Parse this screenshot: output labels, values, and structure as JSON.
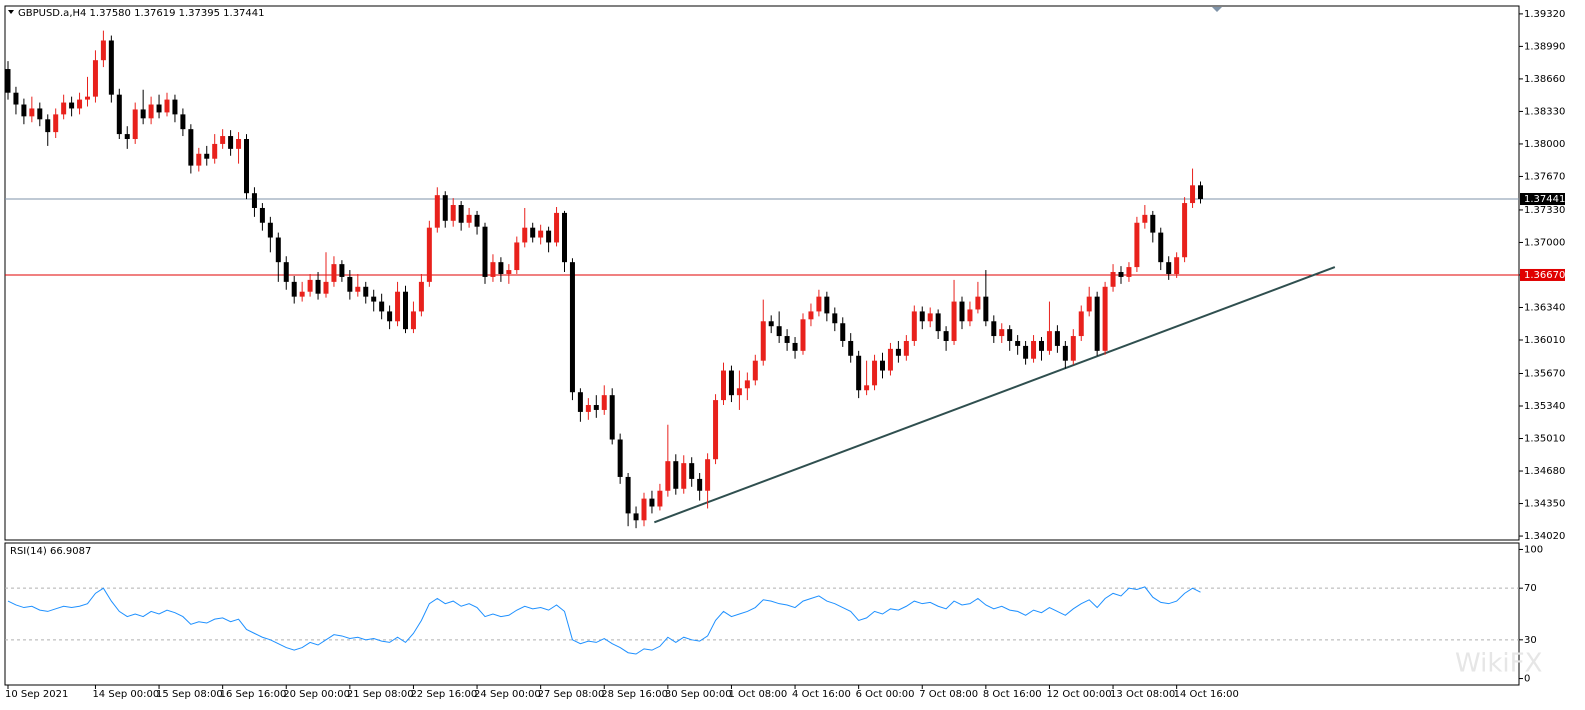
{
  "chart_data": {
    "type": "candlestick",
    "header": "GBPUSD.a,H4  1.37580 1.37619 1.37395 1.37441",
    "watermark": "WikiFX",
    "up_color": "#e8211c",
    "down_color": "#000000",
    "categories": [
      "10 Sep 2021",
      null,
      null,
      null,
      null,
      null,
      null,
      null,
      null,
      null,
      null,
      "14 Sep 00:00",
      null,
      null,
      null,
      null,
      null,
      null,
      null,
      "15 Sep 08:00",
      null,
      null,
      null,
      null,
      null,
      null,
      null,
      "16 Sep 16:00",
      null,
      null,
      null,
      null,
      null,
      null,
      null,
      "20 Sep 00:00",
      null,
      null,
      null,
      null,
      null,
      null,
      null,
      "21 Sep 08:00",
      null,
      null,
      null,
      null,
      null,
      null,
      null,
      "22 Sep 16:00",
      null,
      null,
      null,
      null,
      null,
      null,
      null,
      "24 Sep 00:00",
      null,
      null,
      null,
      null,
      null,
      null,
      null,
      "27 Sep 08:00",
      null,
      null,
      null,
      null,
      null,
      null,
      null,
      "28 Sep 16:00",
      null,
      null,
      null,
      null,
      null,
      null,
      null,
      "30 Sep 00:00",
      null,
      null,
      null,
      null,
      null,
      null,
      null,
      "1 Oct 08:00",
      null,
      null,
      null,
      null,
      null,
      null,
      null,
      "4 Oct 16:00",
      null,
      null,
      null,
      null,
      null,
      null,
      null,
      "6 Oct 00:00",
      null,
      null,
      null,
      null,
      null,
      null,
      null,
      "7 Oct 08:00",
      null,
      null,
      null,
      null,
      null,
      null,
      null,
      "8 Oct 16:00",
      null,
      null,
      null,
      null,
      null,
      null,
      null,
      "12 Oct 00:00",
      null,
      null,
      null,
      null,
      null,
      null,
      null,
      "13 Oct 08:00",
      null,
      null,
      null,
      null,
      null,
      null,
      null,
      "14 Oct 16:00",
      null,
      null,
      null
    ],
    "open": [
      1.3876,
      1.3852,
      1.384,
      1.3828,
      1.3836,
      1.3825,
      1.3812,
      1.383,
      1.3842,
      1.3836,
      1.3845,
      1.3848,
      1.3885,
      1.3905,
      1.385,
      1.381,
      1.3805,
      1.3835,
      1.3826,
      1.384,
      1.3832,
      1.3845,
      1.383,
      1.3815,
      1.3778,
      1.379,
      1.3785,
      1.38,
      1.3808,
      1.3795,
      1.3805,
      1.375,
      1.3735,
      1.372,
      1.3705,
      1.368,
      1.366,
      1.3645,
      1.365,
      1.3662,
      1.3648,
      1.366,
      1.3678,
      1.3665,
      1.365,
      1.3655,
      1.3645,
      1.364,
      1.363,
      1.362,
      1.365,
      1.3612,
      1.363,
      1.366,
      1.3715,
      1.3748,
      1.3722,
      1.3738,
      1.372,
      1.3728,
      1.3716,
      1.3665,
      1.368,
      1.3668,
      1.3672,
      1.37,
      1.3715,
      1.3705,
      1.3712,
      1.37,
      1.373,
      1.368,
      1.3548,
      1.3528,
      1.3535,
      1.353,
      1.3545,
      1.35,
      1.3462,
      1.3425,
      1.3418,
      1.344,
      1.3432,
      1.3448,
      1.3478,
      1.345,
      1.3476,
      1.346,
      1.3448,
      1.348,
      1.354,
      1.357,
      1.3545,
      1.3552,
      1.356,
      1.358,
      1.362,
      1.3615,
      1.3605,
      1.3598,
      1.359,
      1.3622,
      1.363,
      1.3645,
      1.3628,
      1.3618,
      1.36,
      1.3585,
      1.355,
      1.3555,
      1.358,
      1.357,
      1.3592,
      1.3585,
      1.36,
      1.363,
      1.362,
      1.3628,
      1.361,
      1.36,
      1.364,
      1.362,
      1.3632,
      1.3645,
      1.362,
      1.3605,
      1.3612,
      1.36,
      1.3595,
      1.3582,
      1.36,
      1.359,
      1.361,
      1.3595,
      1.358,
      1.3605,
      1.363,
      1.3645,
      1.359,
      1.3655,
      1.367,
      1.3665,
      1.3675,
      1.372,
      1.3728,
      1.371,
      1.368,
      1.3668,
      1.3685,
      1.374,
      1.3758
    ],
    "high": [
      1.3884,
      1.3858,
      1.3846,
      1.3848,
      1.3842,
      1.383,
      1.3836,
      1.385,
      1.3848,
      1.3852,
      1.3868,
      1.3895,
      1.3915,
      1.391,
      1.3856,
      1.3818,
      1.3842,
      1.3855,
      1.3848,
      1.385,
      1.3852,
      1.385,
      1.3836,
      1.382,
      1.3796,
      1.3798,
      1.381,
      1.3815,
      1.3814,
      1.3812,
      1.381,
      1.3756,
      1.374,
      1.3726,
      1.371,
      1.3686,
      1.3666,
      1.366,
      1.3668,
      1.367,
      1.369,
      1.3686,
      1.3682,
      1.3672,
      1.3668,
      1.366,
      1.3652,
      1.3648,
      1.3636,
      1.366,
      1.3656,
      1.364,
      1.3668,
      1.3722,
      1.3756,
      1.3752,
      1.3745,
      1.3742,
      1.3735,
      1.3732,
      1.372,
      1.3688,
      1.3685,
      1.3678,
      1.3706,
      1.3735,
      1.372,
      1.3718,
      1.3716,
      1.3736,
      1.3732,
      1.3684,
      1.3552,
      1.3542,
      1.3545,
      1.3555,
      1.3552,
      1.3506,
      1.3466,
      1.3432,
      1.3446,
      1.3448,
      1.3455,
      1.3515,
      1.3485,
      1.3484,
      1.3482,
      1.3466,
      1.3486,
      1.3546,
      1.3578,
      1.3575,
      1.357,
      1.3568,
      1.3586,
      1.3642,
      1.3626,
      1.363,
      1.3612,
      1.3604,
      1.3628,
      1.3638,
      1.3652,
      1.365,
      1.3634,
      1.3624,
      1.3608,
      1.359,
      1.358,
      1.3586,
      1.3588,
      1.3598,
      1.36,
      1.3606,
      1.3636,
      1.3635,
      1.3634,
      1.3632,
      1.3615,
      1.3662,
      1.3645,
      1.364,
      1.366,
      1.3672,
      1.3626,
      1.3618,
      1.3616,
      1.3606,
      1.36,
      1.3606,
      1.3604,
      1.364,
      1.3616,
      1.36,
      1.3612,
      1.3636,
      1.3655,
      1.365,
      1.366,
      1.3678,
      1.3676,
      1.368,
      1.3726,
      1.3738,
      1.3732,
      1.3715,
      1.3686,
      1.369,
      1.3746,
      1.3775,
      1.37619
    ],
    "low": [
      1.3845,
      1.383,
      1.382,
      1.3822,
      1.3818,
      1.3798,
      1.3806,
      1.3825,
      1.3828,
      1.383,
      1.3838,
      1.3842,
      1.3878,
      1.3842,
      1.3805,
      1.3795,
      1.38,
      1.382,
      1.382,
      1.3826,
      1.3828,
      1.3822,
      1.3808,
      1.377,
      1.3772,
      1.3778,
      1.378,
      1.3795,
      1.3788,
      1.378,
      1.3744,
      1.3726,
      1.3712,
      1.369,
      1.366,
      1.3652,
      1.3638,
      1.364,
      1.3645,
      1.3642,
      1.3644,
      1.3655,
      1.366,
      1.3642,
      1.3645,
      1.3638,
      1.363,
      1.3622,
      1.3612,
      1.3615,
      1.3608,
      1.3608,
      1.3625,
      1.3655,
      1.371,
      1.3715,
      1.3716,
      1.3712,
      1.3715,
      1.3708,
      1.3658,
      1.366,
      1.366,
      1.3658,
      1.3668,
      1.3695,
      1.37,
      1.3698,
      1.369,
      1.3696,
      1.367,
      1.354,
      1.3518,
      1.352,
      1.3522,
      1.3525,
      1.3495,
      1.3455,
      1.3412,
      1.341,
      1.3412,
      1.3425,
      1.3428,
      1.3442,
      1.3444,
      1.3445,
      1.3452,
      1.3438,
      1.343,
      1.3475,
      1.3535,
      1.3538,
      1.353,
      1.354,
      1.3555,
      1.3575,
      1.3608,
      1.3598,
      1.359,
      1.3582,
      1.3586,
      1.3615,
      1.3625,
      1.362,
      1.361,
      1.3594,
      1.3578,
      1.3542,
      1.3545,
      1.355,
      1.3562,
      1.3565,
      1.3578,
      1.358,
      1.3595,
      1.3612,
      1.3614,
      1.3602,
      1.359,
      1.3596,
      1.3612,
      1.3615,
      1.3628,
      1.3615,
      1.3598,
      1.3598,
      1.359,
      1.3586,
      1.3576,
      1.3578,
      1.358,
      1.3586,
      1.3588,
      1.3572,
      1.3576,
      1.36,
      1.3625,
      1.3585,
      1.3586,
      1.365,
      1.3658,
      1.366,
      1.367,
      1.3714,
      1.37,
      1.3672,
      1.3662,
      1.3664,
      1.368,
      1.3735,
      1.37395
    ],
    "close": [
      1.3852,
      1.384,
      1.3828,
      1.3836,
      1.3825,
      1.3812,
      1.383,
      1.3842,
      1.3836,
      1.3845,
      1.3848,
      1.3885,
      1.3905,
      1.385,
      1.381,
      1.3805,
      1.3835,
      1.3826,
      1.384,
      1.3832,
      1.3845,
      1.383,
      1.3815,
      1.3778,
      1.379,
      1.3785,
      1.38,
      1.3808,
      1.3795,
      1.3805,
      1.375,
      1.3735,
      1.372,
      1.3705,
      1.368,
      1.366,
      1.3645,
      1.365,
      1.3662,
      1.3648,
      1.366,
      1.3678,
      1.3665,
      1.365,
      1.3655,
      1.3645,
      1.364,
      1.363,
      1.362,
      1.365,
      1.3612,
      1.363,
      1.366,
      1.3715,
      1.3748,
      1.3722,
      1.3738,
      1.372,
      1.3728,
      1.3716,
      1.3665,
      1.368,
      1.3668,
      1.3672,
      1.37,
      1.3715,
      1.3705,
      1.3712,
      1.37,
      1.373,
      1.368,
      1.3548,
      1.3528,
      1.3535,
      1.353,
      1.3545,
      1.35,
      1.3462,
      1.3425,
      1.3418,
      1.344,
      1.3432,
      1.3448,
      1.3478,
      1.345,
      1.3476,
      1.346,
      1.3448,
      1.348,
      1.354,
      1.357,
      1.3545,
      1.3552,
      1.356,
      1.358,
      1.362,
      1.3615,
      1.3605,
      1.3598,
      1.359,
      1.3622,
      1.363,
      1.3645,
      1.3628,
      1.3618,
      1.36,
      1.3585,
      1.355,
      1.3555,
      1.358,
      1.357,
      1.3592,
      1.3585,
      1.36,
      1.363,
      1.362,
      1.3628,
      1.361,
      1.36,
      1.364,
      1.362,
      1.3632,
      1.3645,
      1.362,
      1.3605,
      1.3612,
      1.36,
      1.3595,
      1.3582,
      1.36,
      1.359,
      1.361,
      1.3595,
      1.358,
      1.3605,
      1.363,
      1.3645,
      1.359,
      1.3655,
      1.367,
      1.3665,
      1.3675,
      1.372,
      1.3728,
      1.371,
      1.368,
      1.3668,
      1.3685,
      1.374,
      1.3758,
      1.37441
    ],
    "ylim": [
      1.3398,
      1.394
    ],
    "yticks": [
      {
        "value": 1.3932,
        "label": "1.39320"
      },
      {
        "value": 1.3899,
        "label": "1.38990"
      },
      {
        "value": 1.3866,
        "label": "1.38660"
      },
      {
        "value": 1.3833,
        "label": "1.38330"
      },
      {
        "value": 1.38,
        "label": "1.38000"
      },
      {
        "value": 1.3767,
        "label": "1.37670"
      },
      {
        "value": 1.3733,
        "label": "1.37330"
      },
      {
        "value": 1.37,
        "label": "1.37000"
      },
      {
        "value": 1.3667,
        "label": "1.36670"
      },
      {
        "value": 1.3634,
        "label": "1.36340"
      },
      {
        "value": 1.3601,
        "label": "1.36010"
      },
      {
        "value": 1.3567,
        "label": "1.35670"
      },
      {
        "value": 1.3534,
        "label": "1.35340"
      },
      {
        "value": 1.3501,
        "label": "1.35010"
      },
      {
        "value": 1.3468,
        "label": "1.34680"
      },
      {
        "value": 1.3435,
        "label": "1.34350"
      },
      {
        "value": 1.3402,
        "label": "1.34020"
      }
    ],
    "hlines": [
      {
        "value": 1.37441,
        "label": "1.37441",
        "color": "#7f93a8",
        "box": "#000000"
      },
      {
        "value": 1.3667,
        "label": "1.36670",
        "color": "#e00000",
        "box": "#e00000"
      }
    ],
    "trendline": {
      "x": [
        81.3,
        166.9
      ],
      "y": [
        1.3416,
        1.3675
      ],
      "color": "#2f4f4f"
    },
    "rsi": {
      "label": "RSI(14) 66.9087",
      "color": "#1e90ff",
      "ylim": [
        -5,
        105
      ],
      "yticks": [
        100,
        70,
        30,
        0
      ],
      "levels": [
        70,
        30
      ],
      "values": [
        60,
        57,
        55,
        56,
        53,
        52,
        54,
        56,
        55,
        56,
        58,
        66,
        70,
        60,
        52,
        48,
        50,
        48,
        52,
        50,
        53,
        51,
        48,
        42,
        44,
        43,
        46,
        47,
        44,
        46,
        38,
        35,
        32,
        30,
        27,
        24,
        22,
        24,
        28,
        26,
        30,
        34,
        33,
        31,
        32,
        30,
        31,
        29,
        28,
        32,
        28,
        35,
        45,
        58,
        62,
        58,
        60,
        56,
        58,
        55,
        48,
        50,
        48,
        49,
        53,
        56,
        54,
        55,
        53,
        57,
        52,
        30,
        27,
        29,
        28,
        31,
        27,
        24,
        20,
        19,
        23,
        22,
        25,
        32,
        28,
        32,
        30,
        29,
        33,
        45,
        52,
        48,
        50,
        52,
        55,
        61,
        60,
        58,
        57,
        55,
        60,
        62,
        64,
        60,
        58,
        55,
        52,
        45,
        47,
        52,
        50,
        54,
        53,
        56,
        60,
        58,
        59,
        56,
        54,
        60,
        57,
        58,
        62,
        57,
        54,
        56,
        53,
        52,
        49,
        53,
        51,
        55,
        52,
        49,
        54,
        58,
        61,
        55,
        62,
        66,
        64,
        70,
        69,
        71,
        63,
        59,
        58,
        60,
        66,
        70,
        66.9087
      ]
    }
  }
}
